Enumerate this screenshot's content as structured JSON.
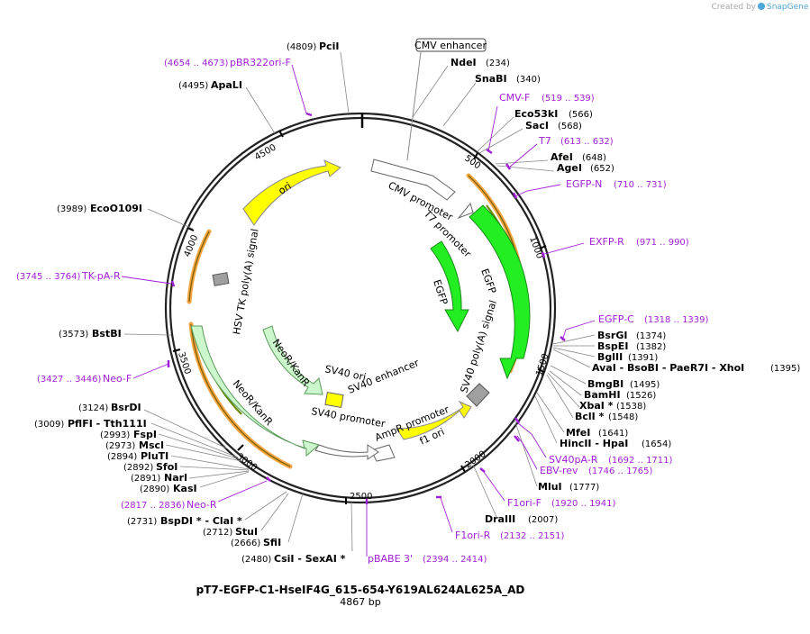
{
  "credit": {
    "prefix": "Created by",
    "brand": "SnapGene"
  },
  "map": {
    "name": "pT7-EGFP-C1-HseIF4G_615-654-Y619AL624AL625A_AD",
    "length_label": "4867 bp",
    "total_bp": 4867
  },
  "ticks": [
    "500",
    "1000",
    "1500",
    "2000",
    "2500",
    "3000",
    "3500",
    "4000",
    "4500"
  ],
  "enzymes": [
    {
      "name": "PciI",
      "pos": "(4809)"
    },
    {
      "name": "NdeI",
      "pos": "(234)"
    },
    {
      "name": "SnaBI",
      "pos": "(340)"
    },
    {
      "name": "Eco53kI",
      "pos": "(566)"
    },
    {
      "name": "SacI",
      "pos": "(568)"
    },
    {
      "name": "AfeI",
      "pos": "(648)"
    },
    {
      "name": "AgeI",
      "pos": "(652)"
    },
    {
      "name": "BsrGI",
      "pos": "(1374)"
    },
    {
      "name": "BspEI",
      "pos": "(1382)"
    },
    {
      "name": "BglII",
      "pos": "(1391)"
    },
    {
      "name": "AvaI - BsoBI - PaeR7I - XhoI",
      "pos": "(1395)"
    },
    {
      "name": "BmgBI",
      "pos": "(1495)"
    },
    {
      "name": "BamHI",
      "pos": "(1526)"
    },
    {
      "name": "XbaI *",
      "pos": "(1538)"
    },
    {
      "name": "BclI *",
      "pos": "(1548)"
    },
    {
      "name": "MfeI",
      "pos": "(1641)"
    },
    {
      "name": "HincII - HpaI",
      "pos": "(1654)"
    },
    {
      "name": "MluI",
      "pos": "(1777)"
    },
    {
      "name": "DraIII",
      "pos": "(2007)"
    },
    {
      "name": "CsiI - SexAI *",
      "pos": "(2480)"
    },
    {
      "name": "SfiI",
      "pos": "(2666)"
    },
    {
      "name": "StuI",
      "pos": "(2712)"
    },
    {
      "name": "BspDI * - ClaI *",
      "pos": "(2731)"
    },
    {
      "name": "KasI",
      "pos": "(2890)"
    },
    {
      "name": "NarI",
      "pos": "(2891)"
    },
    {
      "name": "SfoI",
      "pos": "(2892)"
    },
    {
      "name": "PluTI",
      "pos": "(2894)"
    },
    {
      "name": "MscI",
      "pos": "(2973)"
    },
    {
      "name": "FspI",
      "pos": "(2993)"
    },
    {
      "name": "PflFI - Tth111I",
      "pos": "(3009)"
    },
    {
      "name": "BsrDI",
      "pos": "(3124)"
    },
    {
      "name": "BstBI",
      "pos": "(3573)"
    },
    {
      "name": "EcoO109I",
      "pos": "(3989)"
    },
    {
      "name": "ApaLI",
      "pos": "(4495)"
    }
  ],
  "primers": [
    {
      "name": "pBR322ori-F",
      "pos": "(4654 .. 4673)"
    },
    {
      "name": "CMV-F",
      "pos": "(519 .. 539)"
    },
    {
      "name": "T7",
      "pos": "(613 .. 632)"
    },
    {
      "name": "EGFP-N",
      "pos": "(710 .. 731)"
    },
    {
      "name": "EXFP-R",
      "pos": "(971 .. 990)"
    },
    {
      "name": "EGFP-C",
      "pos": "(1318 .. 1339)"
    },
    {
      "name": "SV40pA-R",
      "pos": "(1692 .. 1711)"
    },
    {
      "name": "EBV-rev",
      "pos": "(1746 .. 1765)"
    },
    {
      "name": "F1ori-F",
      "pos": "(1920 .. 1941)"
    },
    {
      "name": "F1ori-R",
      "pos": "(2132 .. 2151)"
    },
    {
      "name": "pBABE 3'",
      "pos": "(2394 .. 2414)"
    },
    {
      "name": "Neo-R",
      "pos": "(2817 .. 2836)"
    },
    {
      "name": "Neo-F",
      "pos": "(3427 .. 3446)"
    },
    {
      "name": "TK-pA-R",
      "pos": "(3745 .. 3764)"
    }
  ],
  "features": {
    "cmv_enhancer": "CMV enhancer",
    "cmv_promoter": "CMV promoter",
    "t7_promoter": "T7 promoter",
    "egfp_outer": "EGFP",
    "egfp_inner": "EGFP",
    "sv40_polya": "SV40 poly(A) signal",
    "f1_ori": "f1 ori",
    "ampr_promoter": "AmpR promoter",
    "sv40_promoter": "SV40 promoter",
    "sv40_ori": "SV40 ori",
    "sv40_enhancer": "SV40 enhancer",
    "neor_outer": "NeoR/KanR",
    "neor_inner": "NeoR/KanR",
    "hsv_tk": "HSV TK poly(A) signal",
    "ori": "ori"
  },
  "colors": {
    "backbone": "#222222",
    "primer": "#a020d8",
    "orf_outline": "#f2a440",
    "egfp": "#22ee22",
    "neor": "#ccf7cc",
    "ori": "#ffff00",
    "promoter": "#ffffff",
    "polya": "#a0a0a0"
  }
}
